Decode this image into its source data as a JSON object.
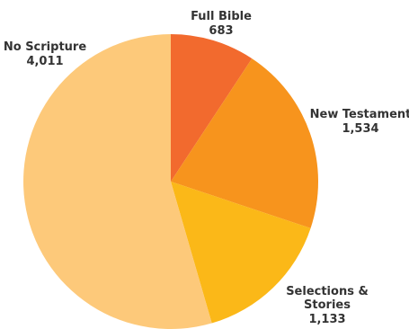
{
  "chart_data": {
    "type": "pie",
    "slices": [
      {
        "name": "Full Bible",
        "value": 683,
        "value_label": "683",
        "color": "#F26A2E"
      },
      {
        "name": "New Testament",
        "value": 1534,
        "value_label": "1,534",
        "color": "#F7941D"
      },
      {
        "name": "Selections & Stories",
        "value": 1133,
        "value_label": "1,133",
        "color": "#FBB818"
      },
      {
        "name": "No Scripture",
        "value": 4011,
        "value_label": "4,011",
        "color": "#FDC97A"
      }
    ]
  }
}
